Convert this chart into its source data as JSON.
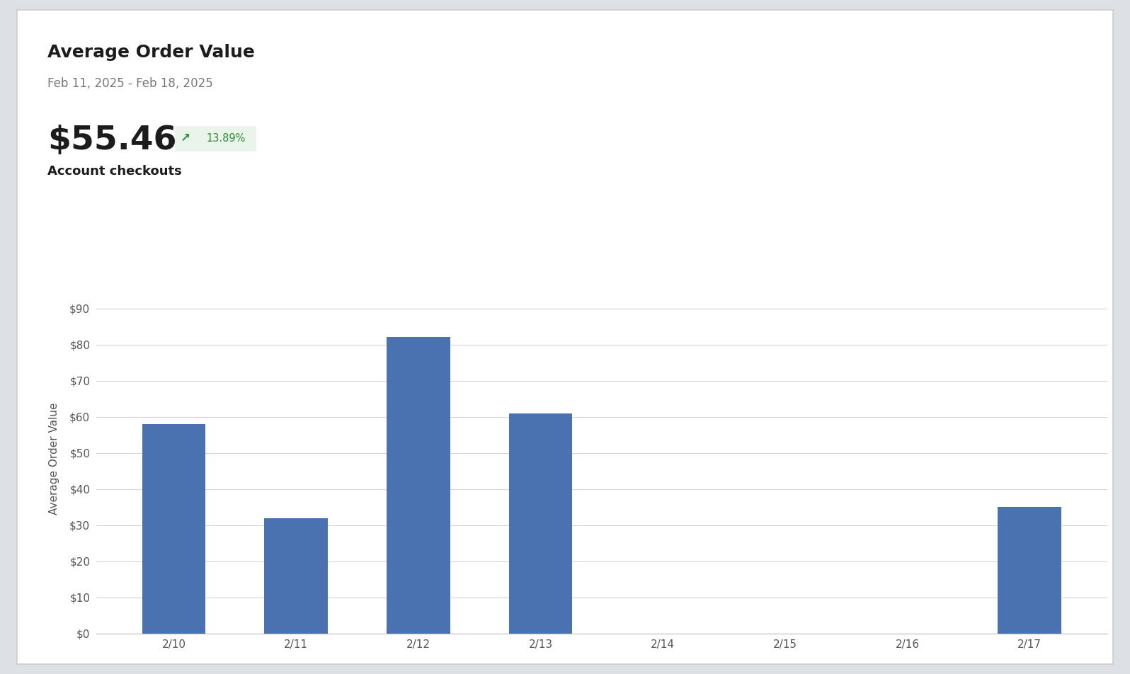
{
  "title": "Average Order Value",
  "date_range": "Feb 11, 2025 - Feb 18, 2025",
  "kpi_value": "$55.46",
  "kpi_change": "↗ 13.89%",
  "kpi_label": "Account checkouts",
  "categories": [
    "2/10",
    "2/11",
    "2/12",
    "2/13",
    "2/14",
    "2/15",
    "2/16",
    "2/17"
  ],
  "values": [
    58,
    32,
    82,
    61,
    0,
    0,
    0,
    35
  ],
  "bar_color": "#4a72b0",
  "ylabel": "Average Order Value",
  "yticks": [
    0,
    10,
    20,
    30,
    40,
    50,
    60,
    70,
    80,
    90
  ],
  "ytick_labels": [
    "$0",
    "$10",
    "$20",
    "$30",
    "$40",
    "$50",
    "$60",
    "$70",
    "$80",
    "$90"
  ],
  "ylim": [
    0,
    97
  ],
  "grid_color": "#d5d5d5",
  "title_fontsize": 18,
  "subtitle_fontsize": 12,
  "kpi_fontsize": 34,
  "ylabel_fontsize": 11,
  "tick_fontsize": 11,
  "outer_bg": "#dde0e4",
  "card_bg": "#ffffff",
  "card_edge": "#cccccc"
}
